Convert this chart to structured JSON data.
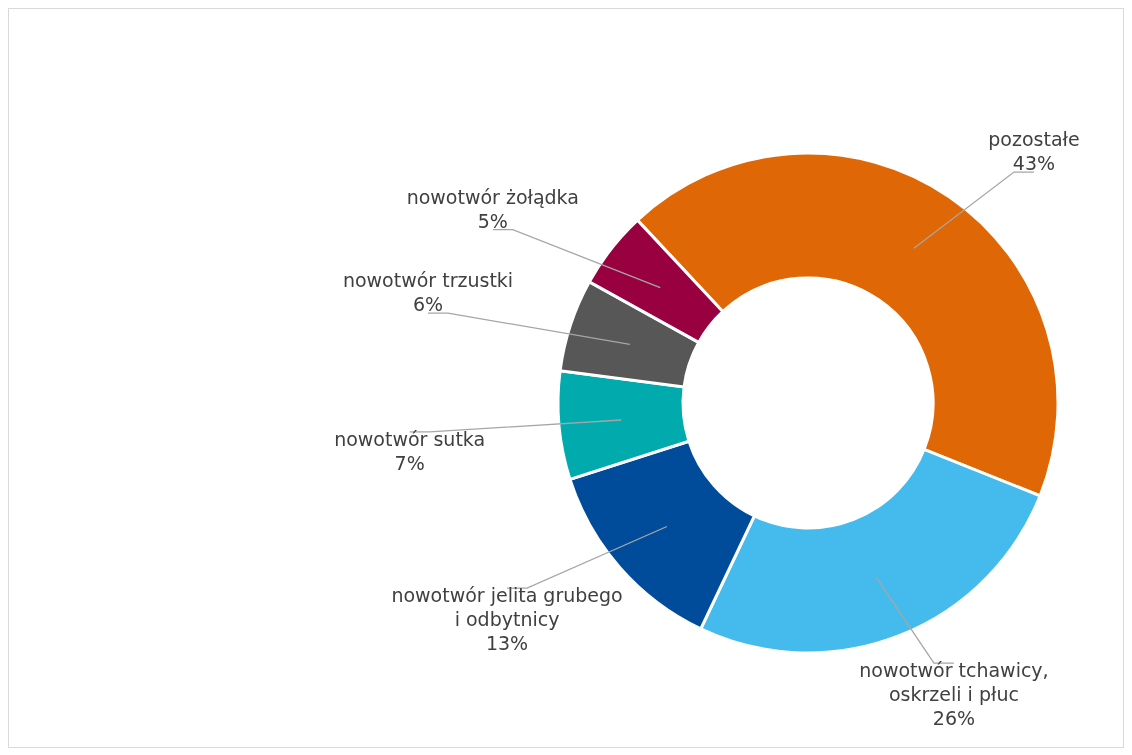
{
  "chart_data": {
    "type": "donut",
    "categories": [
      "pozostałe",
      "nowotwór tchawicy, oskrzeli i płuc",
      "nowotwór jelita grubego i odbytnicy",
      "nowotwór sutka",
      "nowotwór trzustki",
      "nowotwór żołądka"
    ],
    "values": [
      43,
      26,
      13,
      7,
      6,
      5
    ],
    "value_labels": [
      "43%",
      "26%",
      "13%",
      "7%",
      "6%",
      "5%"
    ],
    "colors": [
      "#e06705",
      "#45bbed",
      "#004c9b",
      "#00aaad",
      "#575757",
      "#98003f"
    ]
  }
}
